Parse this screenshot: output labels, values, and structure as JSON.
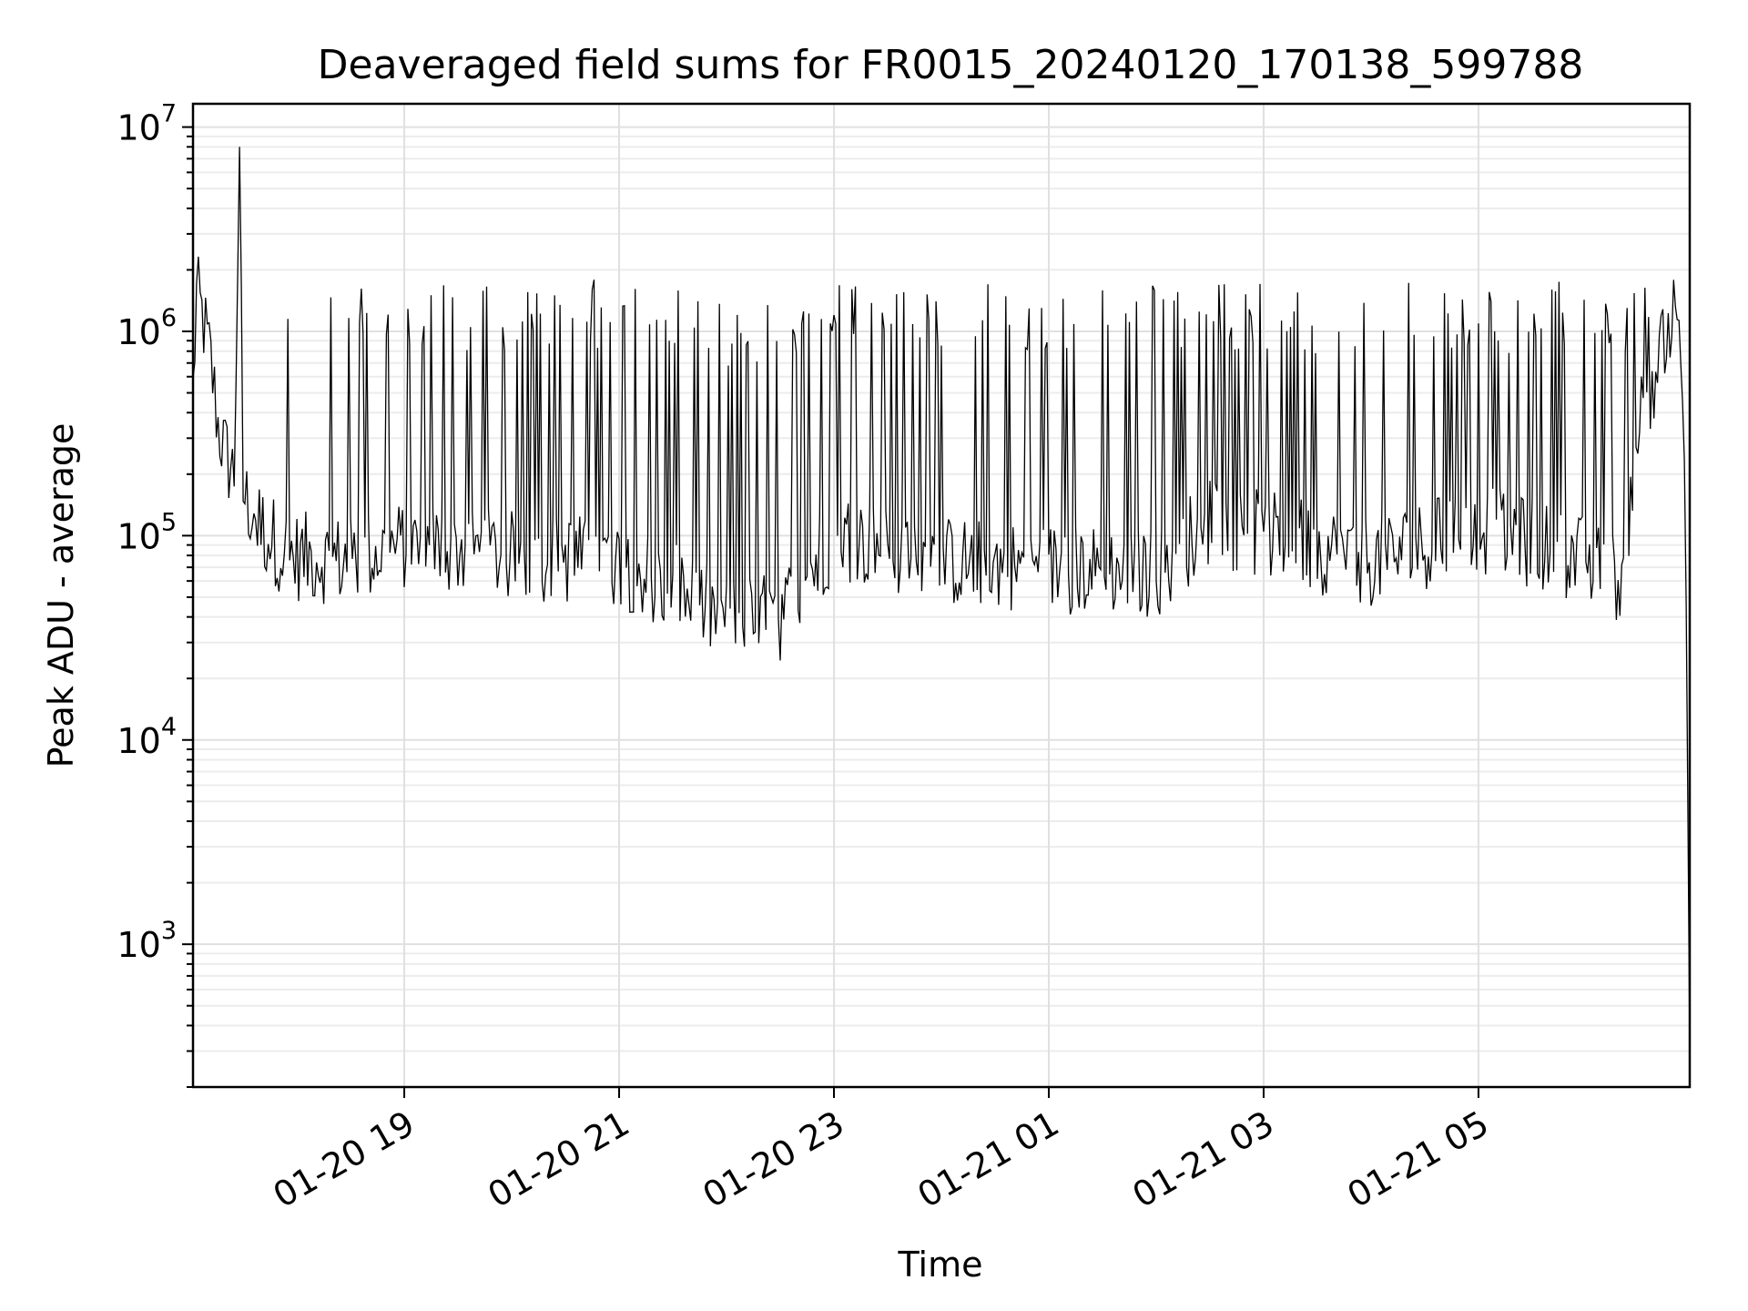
{
  "chart_data": {
    "type": "line",
    "title": "Deaveraged field sums for FR0015_20240120_170138_599788",
    "xlabel": "Time",
    "ylabel": "Peak ADU - average",
    "yscale": "log",
    "x_start": "2024-01-20 17:02",
    "x_end": "2024-01-21 06:58",
    "ylim": [
      200,
      13000000
    ],
    "grid": true,
    "x_ticks": [
      {
        "value": "2024-01-20 19:00",
        "label": "01-20 19"
      },
      {
        "value": "2024-01-20 21:00",
        "label": "01-20 21"
      },
      {
        "value": "2024-01-20 23:00",
        "label": "01-20 23"
      },
      {
        "value": "2024-01-21 01:00",
        "label": "01-21 01"
      },
      {
        "value": "2024-01-21 03:00",
        "label": "01-21 03"
      },
      {
        "value": "2024-01-21 05:00",
        "label": "01-21 05"
      }
    ],
    "y_ticks": [
      {
        "value": 1000,
        "base": "10",
        "exp": "3"
      },
      {
        "value": 10000,
        "base": "10",
        "exp": "4"
      },
      {
        "value": 100000,
        "base": "10",
        "exp": "5"
      },
      {
        "value": 1000000,
        "base": "10",
        "exp": "6"
      },
      {
        "value": 10000000,
        "base": "10",
        "exp": "7"
      }
    ],
    "series": [
      {
        "color": "#000000",
        "points": [
          [
            "2024-01-20 17:02",
            500000
          ],
          [
            "2024-01-20 17:04",
            1500000
          ],
          [
            "2024-01-20 17:08",
            1100000
          ],
          [
            "2024-01-20 17:12",
            700000
          ],
          [
            "2024-01-20 17:16",
            350000
          ],
          [
            "2024-01-20 17:20",
            250000
          ],
          [
            "2024-01-20 17:25",
            200000
          ],
          [
            "2024-01-20 17:28",
            8000000
          ],
          [
            "2024-01-20 17:30",
            160000
          ],
          [
            "2024-01-20 17:40",
            110000
          ],
          [
            "2024-01-20 17:55",
            80000
          ],
          [
            "2024-01-20 18:30",
            75000
          ],
          [
            "2024-01-20 19:00",
            90000
          ],
          [
            "2024-01-20 20:00",
            80000
          ],
          [
            "2024-01-20 21:00",
            75000
          ],
          [
            "2024-01-20 21:30",
            55000
          ],
          [
            "2024-01-20 22:00",
            38000
          ],
          [
            "2024-01-20 22:30",
            40000
          ],
          [
            "2024-01-20 23:00",
            100000
          ],
          [
            "2024-01-21 00:00",
            75000
          ],
          [
            "2024-01-21 01:00",
            70000
          ],
          [
            "2024-01-21 02:00",
            65000
          ],
          [
            "2024-01-21 02:30",
            120000
          ],
          [
            "2024-01-21 03:00",
            100000
          ],
          [
            "2024-01-21 04:00",
            75000
          ],
          [
            "2024-01-21 05:00",
            110000
          ],
          [
            "2024-01-21 06:00",
            75000
          ],
          [
            "2024-01-21 06:20",
            60000
          ],
          [
            "2024-01-21 06:30",
            400000
          ],
          [
            "2024-01-21 06:45",
            900000
          ],
          [
            "2024-01-21 06:50",
            1200000
          ],
          [
            "2024-01-21 06:55",
            300000
          ],
          [
            "2024-01-21 06:58",
            300
          ]
        ],
        "spikes": {
          "peak": 1700000,
          "interval_minutes": 4,
          "periods": [
            [
              "2024-01-20 17:35",
              "2024-01-20 22:00"
            ],
            [
              "2024-01-20 22:00",
              "2024-01-20 22:50"
            ],
            [
              "2024-01-20 22:50",
              "2024-01-21 06:40"
            ]
          ],
          "period_peaks": [
            1800000,
            1500000,
            1750000
          ]
        }
      }
    ]
  }
}
